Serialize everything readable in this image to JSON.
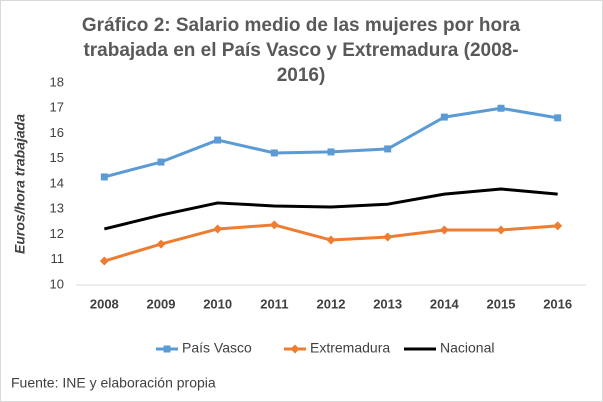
{
  "chart_data": {
    "type": "line",
    "title": "Gráfico 2: Salario medio de las mujeres por hora trabajada en el País Vasco y Extremadura (2008-2016)",
    "y_label": "Euros/hora trabajada",
    "source": "Fuente: INE y elaboración propia",
    "categories": [
      "2008",
      "2009",
      "2010",
      "2011",
      "2012",
      "2013",
      "2014",
      "2015",
      "2016"
    ],
    "series": [
      {
        "name": "País Vasco",
        "color": "#5b9bd5",
        "marker": "square",
        "values": [
          14.28,
          14.87,
          15.74,
          15.23,
          15.27,
          15.39,
          16.65,
          17.0,
          16.62
        ]
      },
      {
        "name": "Extremadura",
        "color": "#ed7d31",
        "marker": "diamond",
        "values": [
          10.95,
          11.62,
          12.22,
          12.38,
          11.78,
          11.9,
          12.18,
          12.18,
          12.34
        ]
      },
      {
        "name": "Nacional",
        "color": "#000000",
        "values": [
          12.22,
          12.77,
          13.25,
          13.13,
          13.09,
          13.2,
          13.6,
          13.8,
          13.6
        ]
      }
    ],
    "ylim": [
      10,
      18
    ],
    "yticks": [
      10,
      11,
      12,
      13,
      14,
      15,
      16,
      17,
      18
    ],
    "grid": false,
    "legend": "bottom"
  }
}
